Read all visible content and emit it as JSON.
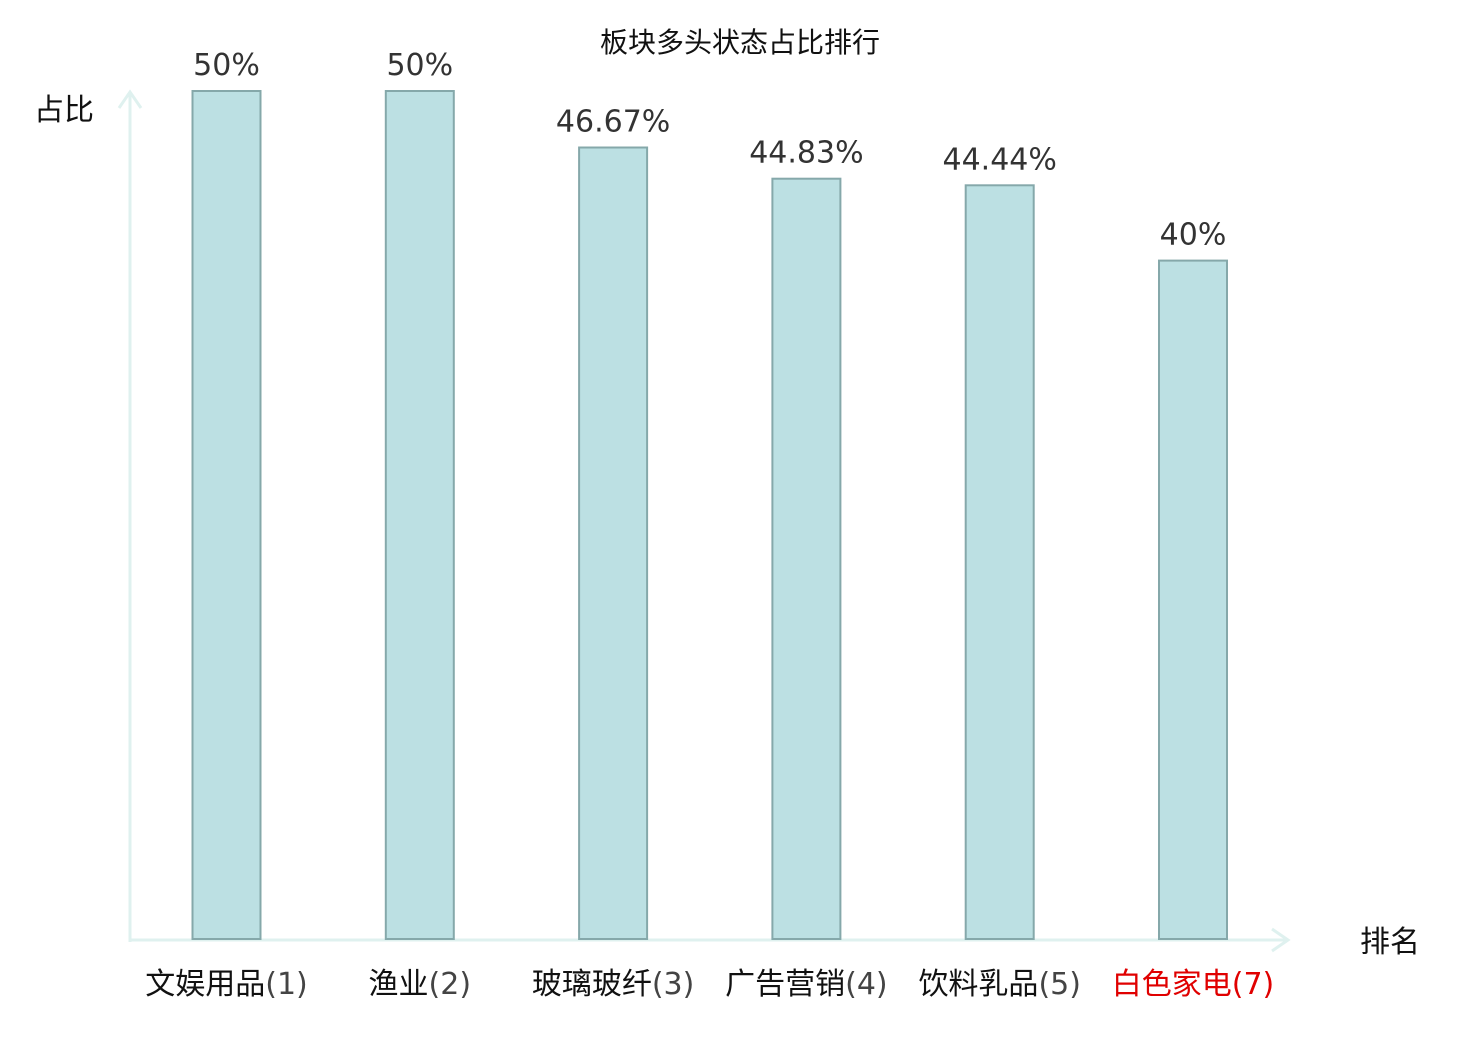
{
  "chart_data": {
    "type": "bar",
    "title": "板块多头状态占比排行",
    "ylabel": "占比",
    "xlabel": "排名",
    "ylim": [
      0,
      50
    ],
    "grid": false,
    "categories": [
      {
        "name": "文娱用品",
        "rank": "(1)",
        "highlight": false
      },
      {
        "name": "渔业",
        "rank": "(2)",
        "highlight": false
      },
      {
        "name": "玻璃玻纤",
        "rank": "(3)",
        "highlight": false
      },
      {
        "name": "广告营销",
        "rank": "(4)",
        "highlight": false
      },
      {
        "name": "饮料乳品",
        "rank": "(5)",
        "highlight": false
      },
      {
        "name": "白色家电",
        "rank": "(7)",
        "highlight": true
      }
    ],
    "values": [
      50,
      50,
      46.67,
      44.83,
      44.44,
      40
    ],
    "value_labels": [
      "50%",
      "50%",
      "46.67%",
      "44.83%",
      "44.44%",
      "40%"
    ]
  },
  "colors": {
    "bar_fill": "#bce0e3",
    "bar_stroke": "#85a8aa",
    "axis": "#dff1ef",
    "text": "#111111",
    "rank_text": "#444444",
    "highlight": "#e00000"
  }
}
